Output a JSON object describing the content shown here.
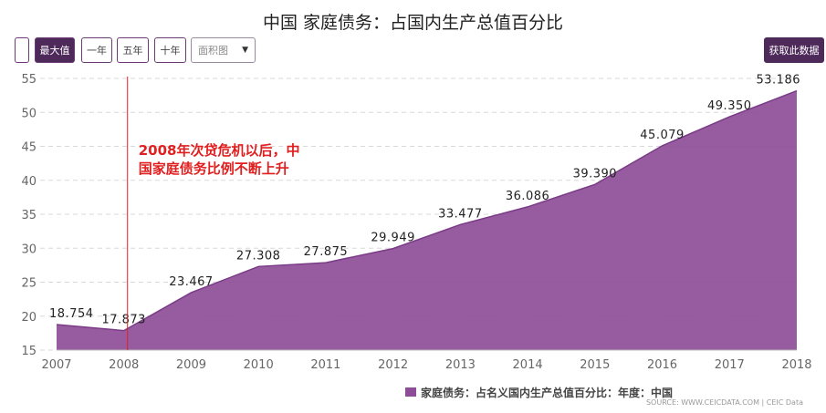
{
  "title": "中国 家庭债务：占国内生产总值百分比",
  "toolbar": {
    "max_label": "最大值",
    "one_year_label": "一年",
    "five_year_label": "五年",
    "ten_year_label": "十年",
    "chart_type_value": "面积图",
    "get_data_label": "获取此数据"
  },
  "annotation": {
    "line1": "2008年次贷危机以后，中",
    "line2": "国家庭债务比例不断上升",
    "year": 2008
  },
  "source": "SOURCE: WWW.CEICDATA.COM | CEIC Data",
  "colors": {
    "area_fill": "#8e4d98",
    "annotation": "#e02020",
    "button_active": "#4e2a5b"
  },
  "chart_data": {
    "type": "area",
    "title": "中国 家庭债务：占国内生产总值百分比",
    "x": [
      2007,
      2008,
      2009,
      2010,
      2011,
      2012,
      2013,
      2014,
      2015,
      2016,
      2017,
      2018
    ],
    "series": [
      {
        "name": "家庭债务：占名义国内生产总值百分比：年度：中国",
        "values": [
          18.754,
          17.873,
          23.467,
          27.308,
          27.875,
          29.949,
          33.477,
          36.086,
          39.39,
          45.079,
          49.35,
          53.186
        ],
        "labels": [
          "18.754",
          "17.873",
          "23.467",
          "27.308",
          "27.875",
          "29.949",
          "33.477",
          "36.086",
          "39.390",
          "45.079",
          "49.350",
          "53.186"
        ]
      }
    ],
    "yticks": [
      15,
      20,
      25,
      30,
      35,
      40,
      45,
      50,
      55
    ],
    "ylim": [
      15,
      55
    ],
    "xlim": [
      2007,
      2018
    ],
    "grid": true,
    "legend": "bottom-right"
  }
}
